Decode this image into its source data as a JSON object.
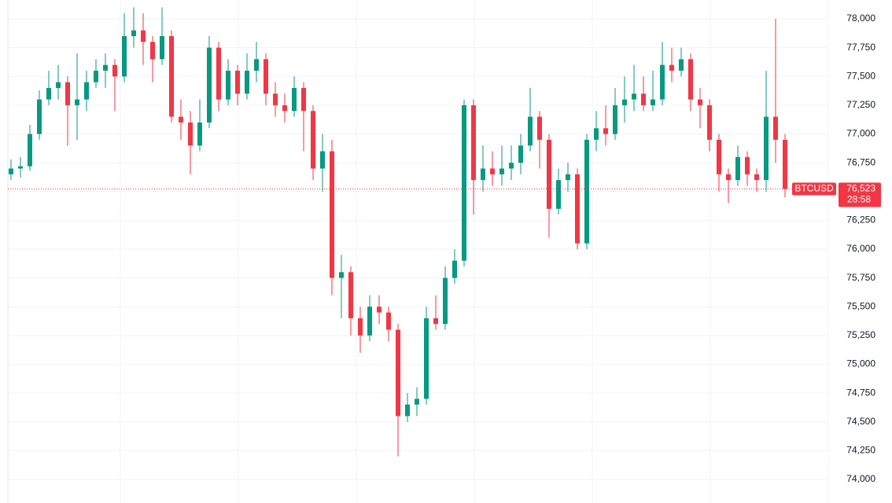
{
  "chart_data": {
    "type": "candlestick",
    "symbol": "BTCUSD",
    "last_price": {
      "value": 76523,
      "label": "76,523"
    },
    "countdown": "28:58",
    "up_color": "#089981",
    "down_color": "#f23645",
    "grid": true,
    "ylim": [
      73795,
      78164
    ],
    "yticks": [
      {
        "value": 74000,
        "label": "74,000"
      },
      {
        "value": 74250,
        "label": "74,250"
      },
      {
        "value": 74500,
        "label": "74,500"
      },
      {
        "value": 74750,
        "label": "74,750"
      },
      {
        "value": 75000,
        "label": "75,000"
      },
      {
        "value": 75250,
        "label": "75,250"
      },
      {
        "value": 75500,
        "label": "75,500"
      },
      {
        "value": 75750,
        "label": "75,750"
      },
      {
        "value": 76000,
        "label": "76,000"
      },
      {
        "value": 76250,
        "label": "76,250"
      },
      {
        "value": 76500,
        "label": "76,500"
      },
      {
        "value": 76750,
        "label": "76,750"
      },
      {
        "value": 77000,
        "label": "77,000"
      },
      {
        "value": 77250,
        "label": "77,250"
      },
      {
        "value": 77500,
        "label": "77,500"
      },
      {
        "value": 77750,
        "label": "77,750"
      },
      {
        "value": 78000,
        "label": "78,000"
      }
    ],
    "open": [
      76650,
      76700,
      76720,
      77000,
      77300,
      77400,
      77450,
      77250,
      77300,
      77450,
      77550,
      77600,
      77500,
      77850,
      77900,
      77800,
      77650,
      77850,
      77150,
      77100,
      76900,
      77100,
      77750,
      77300,
      77550,
      77350,
      77550,
      77650,
      77350,
      77250,
      77200,
      77400,
      77200,
      76700,
      76850,
      75750,
      75800,
      75400,
      75250,
      75500,
      75450,
      75300,
      74550,
      74650,
      74700,
      75400,
      75350,
      75750,
      75900,
      77250,
      76600,
      76700,
      76650,
      76700,
      76750,
      76900,
      77150,
      76950,
      76350,
      76600,
      76650,
      76050,
      76950,
      77050,
      77000,
      77250,
      77300,
      77350,
      77250,
      77300,
      77600,
      77550,
      77650,
      77300,
      77250,
      76950,
      76650,
      76600,
      76800,
      76650,
      76600,
      77150,
      76950
    ],
    "high": [
      76780,
      76800,
      77080,
      77380,
      77550,
      77600,
      77500,
      77700,
      77550,
      77650,
      77700,
      77650,
      78050,
      78100,
      78050,
      77850,
      78100,
      77900,
      77300,
      77200,
      77300,
      77850,
      77800,
      77650,
      77600,
      77700,
      77800,
      77700,
      77450,
      77350,
      77500,
      77450,
      77250,
      77000,
      76950,
      75950,
      75850,
      75500,
      75600,
      75600,
      75500,
      75350,
      74750,
      74800,
      75500,
      75600,
      75850,
      76000,
      77300,
      77300,
      76900,
      76850,
      76900,
      76900,
      77000,
      77400,
      77200,
      77000,
      76700,
      76750,
      76700,
      77000,
      77200,
      77250,
      77400,
      77500,
      77600,
      77500,
      77550,
      77800,
      77750,
      77750,
      77700,
      77400,
      77300,
      77000,
      76700,
      76900,
      76850,
      76700,
      77550,
      78000,
      77000
    ],
    "low": [
      76600,
      76620,
      76680,
      76950,
      77250,
      77300,
      76900,
      76950,
      77200,
      77400,
      77400,
      77200,
      77450,
      77750,
      77600,
      77450,
      77600,
      77100,
      76950,
      76650,
      76850,
      77050,
      77200,
      77250,
      77250,
      77300,
      77450,
      77250,
      77150,
      77100,
      77150,
      76850,
      76600,
      76500,
      75600,
      75400,
      75250,
      75100,
      75200,
      75350,
      75200,
      74200,
      74500,
      74550,
      74650,
      75300,
      75300,
      75700,
      75850,
      76300,
      76500,
      76550,
      76550,
      76600,
      76650,
      76850,
      76700,
      76100,
      76300,
      76500,
      76000,
      76000,
      76850,
      76900,
      76950,
      77100,
      77200,
      77200,
      77200,
      77250,
      77450,
      77500,
      77200,
      77050,
      76850,
      76500,
      76400,
      76550,
      76550,
      76500,
      76500,
      76750,
      76450
    ],
    "close": [
      76700,
      76720,
      77000,
      77300,
      77400,
      77450,
      77250,
      77300,
      77450,
      77550,
      77600,
      77500,
      77850,
      77900,
      77800,
      77650,
      77850,
      77150,
      77100,
      76900,
      77100,
      77750,
      77300,
      77550,
      77350,
      77550,
      77650,
      77350,
      77250,
      77200,
      77400,
      77200,
      76700,
      76850,
      75750,
      75800,
      75400,
      75250,
      75500,
      75450,
      75300,
      74550,
      74650,
      74700,
      75400,
      75350,
      75750,
      75900,
      77250,
      76600,
      76700,
      76650,
      76700,
      76750,
      76900,
      77150,
      76950,
      76350,
      76600,
      76650,
      76050,
      76950,
      77050,
      77000,
      77250,
      77300,
      77350,
      77250,
      77300,
      77600,
      77550,
      77650,
      77300,
      77250,
      76950,
      76650,
      76600,
      76800,
      76650,
      76600,
      77150,
      76950,
      76523
    ]
  }
}
